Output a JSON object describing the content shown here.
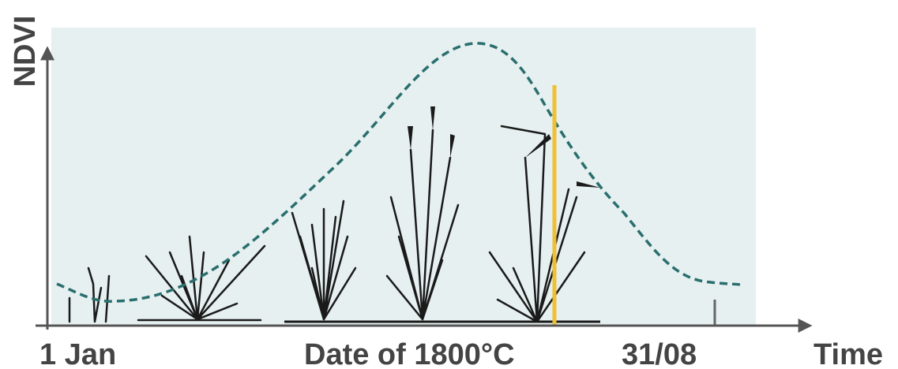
{
  "y_axis": {
    "label": "NDVI"
  },
  "x_axis": {
    "labels": [
      "1 Jan",
      "Date of 1800°C",
      "31/08",
      "Time"
    ]
  }
}
